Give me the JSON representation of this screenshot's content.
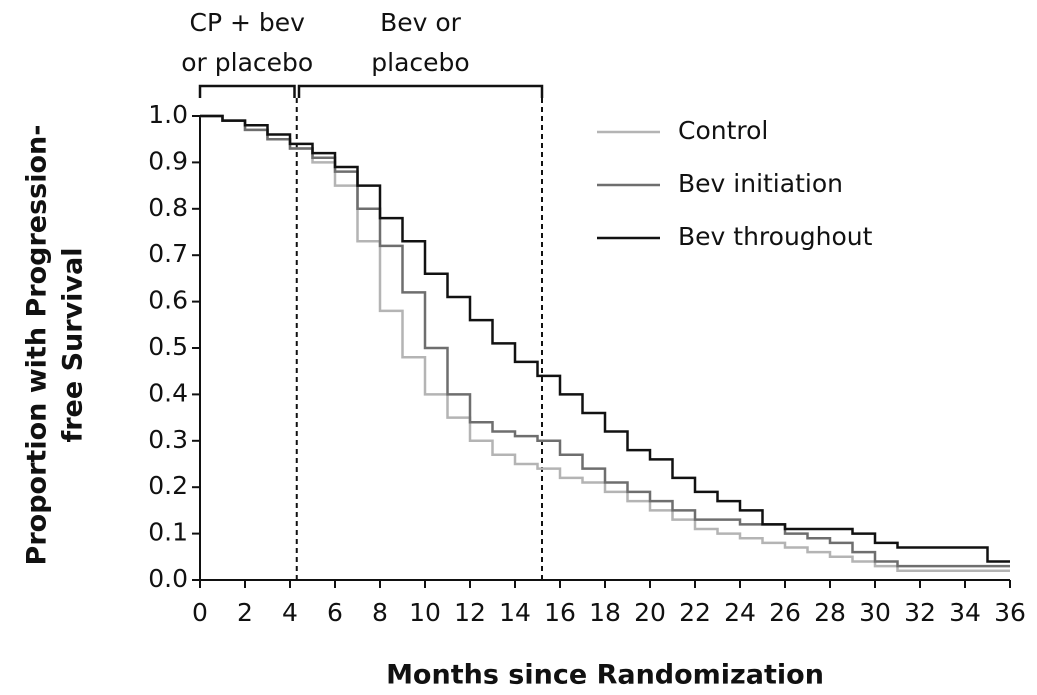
{
  "chart_data": {
    "type": "line",
    "step": true,
    "x_label": "Months since Randomization",
    "y_label": [
      "Proportion with Progression-",
      "free Survival"
    ],
    "x": [
      0,
      1,
      2,
      3,
      4,
      5,
      6,
      7,
      8,
      9,
      10,
      11,
      12,
      13,
      14,
      15,
      16,
      17,
      18,
      19,
      20,
      21,
      22,
      23,
      24,
      25,
      26,
      27,
      28,
      29,
      30,
      31,
      32,
      33,
      34,
      35,
      36
    ],
    "series": [
      {
        "name": "Control",
        "color": "#b4b4b4",
        "values": [
          1.0,
          0.99,
          0.97,
          0.95,
          0.93,
          0.9,
          0.85,
          0.73,
          0.58,
          0.48,
          0.4,
          0.35,
          0.3,
          0.27,
          0.25,
          0.24,
          0.22,
          0.21,
          0.19,
          0.17,
          0.15,
          0.13,
          0.11,
          0.1,
          0.09,
          0.08,
          0.07,
          0.06,
          0.05,
          0.04,
          0.03,
          0.02,
          0.02,
          0.02,
          0.02,
          0.02,
          0.02
        ]
      },
      {
        "name": "Bev initiation",
        "color": "#6e6e6e",
        "values": [
          1.0,
          0.99,
          0.97,
          0.95,
          0.93,
          0.91,
          0.88,
          0.8,
          0.72,
          0.62,
          0.5,
          0.4,
          0.34,
          0.32,
          0.31,
          0.3,
          0.27,
          0.24,
          0.21,
          0.19,
          0.17,
          0.15,
          0.13,
          0.13,
          0.12,
          0.12,
          0.1,
          0.09,
          0.08,
          0.06,
          0.04,
          0.03,
          0.03,
          0.03,
          0.03,
          0.03,
          0.03
        ]
      },
      {
        "name": "Bev throughout",
        "color": "#111111",
        "values": [
          1.0,
          0.99,
          0.98,
          0.96,
          0.94,
          0.92,
          0.89,
          0.85,
          0.78,
          0.73,
          0.66,
          0.61,
          0.56,
          0.51,
          0.47,
          0.44,
          0.4,
          0.36,
          0.32,
          0.28,
          0.26,
          0.22,
          0.19,
          0.17,
          0.15,
          0.12,
          0.11,
          0.11,
          0.11,
          0.1,
          0.08,
          0.07,
          0.07,
          0.07,
          0.07,
          0.04,
          0.04
        ]
      }
    ],
    "xlim": [
      0,
      36
    ],
    "ylim": [
      0,
      1
    ],
    "xticks": [
      0,
      2,
      4,
      6,
      8,
      10,
      12,
      14,
      16,
      18,
      20,
      22,
      24,
      26,
      28,
      30,
      32,
      34,
      36
    ],
    "yticks": [
      {
        "value": 0,
        "label": "0.0"
      },
      0.1,
      0.2,
      0.3,
      0.4,
      0.5,
      0.6,
      0.7,
      0.8,
      0.9,
      {
        "value": 1,
        "label": "1.0"
      }
    ],
    "vlines": [
      4.3,
      15.2
    ],
    "phases": [
      {
        "label": [
          "CP + bev",
          "or placebo"
        ],
        "start": 0,
        "end": 4.2
      },
      {
        "label": [
          "Bev or",
          "placebo"
        ],
        "start": 4.4,
        "end": 15.2
      }
    ],
    "legend": "upper-right"
  }
}
